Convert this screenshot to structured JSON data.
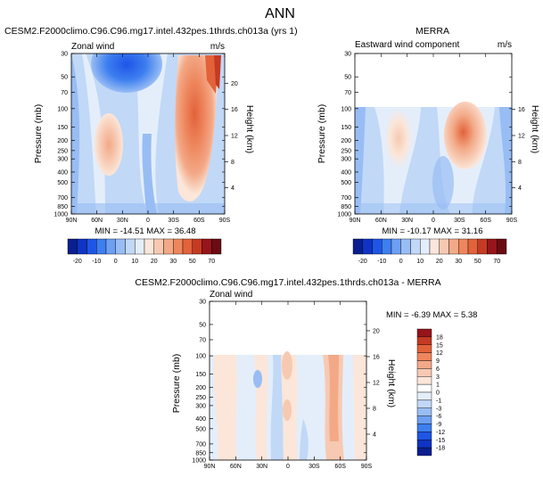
{
  "page_title": "ANN",
  "colorbar_top": {
    "labels": [
      "-20",
      "-10",
      "0",
      "10",
      "20",
      "30",
      "50",
      "70"
    ],
    "colors": [
      "#0a1f8f",
      "#0f34c4",
      "#1e55e6",
      "#3d7ef0",
      "#6d9ff2",
      "#98bdf4",
      "#c1d8f7",
      "#e4eefb",
      "#fbe6d9",
      "#f7c9b2",
      "#f3a987",
      "#ee865d",
      "#e2623a",
      "#c53a22",
      "#97151a",
      "#6b0b12"
    ]
  },
  "colorbar_diff": {
    "labels": [
      "18",
      "15",
      "12",
      "9",
      "6",
      "3",
      "1",
      "0",
      "-1",
      "-3",
      "-6",
      "-9",
      "-12",
      "-15",
      "-18"
    ],
    "colors": [
      "#97151a",
      "#c53a22",
      "#e2623a",
      "#ee865d",
      "#f3a987",
      "#f7c9b2",
      "#fbe6d9",
      "#ffffff",
      "#e4eefb",
      "#c1d8f7",
      "#98bdf4",
      "#6d9ff2",
      "#3d7ef0",
      "#1e55e6",
      "#0f34c4",
      "#0a1f8f"
    ]
  },
  "chart_data": [
    {
      "type": "heatmap",
      "title": "CESM2.F2000climo.C96.C96.mg17.intel.432pes.1thrds.ch013a (yrs 1)",
      "subtitle_left": "Zonal wind",
      "subtitle_right": "m/s",
      "xlabel": "",
      "ylabel": "Pressure (mb)",
      "ylabel_right": "Height (km)",
      "x_ticks": [
        "90N",
        "60N",
        "30N",
        "0",
        "30S",
        "60S",
        "90S"
      ],
      "y_ticks": [
        "30",
        "50",
        "70",
        "100",
        "150",
        "200",
        "250",
        "300",
        "400",
        "500",
        "700",
        "850",
        "1000"
      ],
      "y_right_ticks": [
        "20",
        "16",
        "12",
        "8",
        "4"
      ],
      "stats": "MIN = -14.51   MAX = 36.48",
      "min": -14.51,
      "max": 36.48
    },
    {
      "type": "heatmap",
      "title": "MERRA",
      "subtitle_left": "Eastward wind component",
      "subtitle_right": "m/s",
      "xlabel": "",
      "ylabel": "Pressure (mb)",
      "ylabel_right": "Height (km)",
      "x_ticks": [
        "90N",
        "60N",
        "30N",
        "0",
        "30S",
        "60S",
        "90S"
      ],
      "y_ticks": [
        "30",
        "50",
        "70",
        "100",
        "150",
        "200",
        "250",
        "300",
        "400",
        "500",
        "700",
        "850",
        "1000"
      ],
      "y_right_ticks": [
        "16",
        "12",
        "8",
        "4"
      ],
      "stats": "MIN = -10.17   MAX = 31.16",
      "min": -10.17,
      "max": 31.16
    },
    {
      "type": "heatmap",
      "title": "CESM2.F2000climo.C96.C96.mg17.intel.432pes.1thrds.ch013a - MERRA",
      "subtitle_left": "Zonal wind",
      "subtitle_right": "",
      "xlabel": "",
      "ylabel": "Pressure (mb)",
      "ylabel_right": "Height (km)",
      "x_ticks": [
        "90N",
        "60N",
        "30N",
        "0",
        "30S",
        "60S",
        "90S"
      ],
      "y_ticks": [
        "30",
        "50",
        "70",
        "100",
        "150",
        "200",
        "250",
        "300",
        "400",
        "500",
        "700",
        "850",
        "1000"
      ],
      "y_right_ticks": [
        "20",
        "16",
        "12",
        "8",
        "4"
      ],
      "stats": "MIN =  -6.39   MAX =   5.38",
      "min": -6.39,
      "max": 5.38
    }
  ]
}
